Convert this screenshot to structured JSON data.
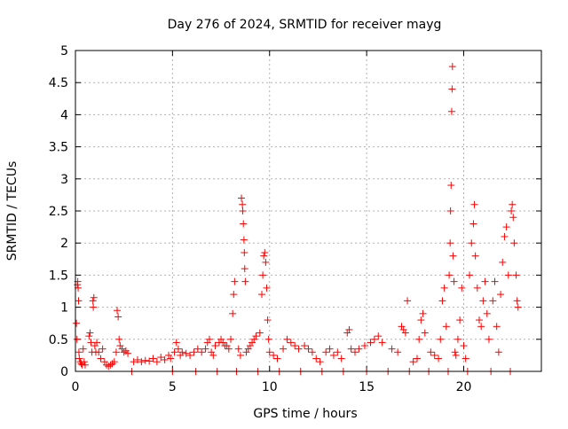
{
  "chart_data": {
    "type": "scatter",
    "title": "Day 276 of 2024, SRMTID for receiver mayg",
    "xlabel": "GPS time / hours",
    "ylabel": "SRMTID / TECUs",
    "xlim": [
      0,
      24
    ],
    "ylim": [
      0,
      5
    ],
    "xticks": [
      0,
      5,
      10,
      15,
      20
    ],
    "xtick_labels": [
      "0",
      "5",
      "10",
      "15",
      "20"
    ],
    "yticks": [
      0,
      0.5,
      1,
      1.5,
      2,
      2.5,
      3,
      3.5,
      4,
      4.5,
      5
    ],
    "ytick_labels": [
      "0",
      "0.5",
      "1",
      "1.5",
      "2",
      "2.5",
      "3",
      "3.5",
      "4",
      "4.5",
      "5"
    ],
    "grid": true,
    "marker": "+",
    "series": [
      {
        "name": "SRMTID",
        "color": "#ff0000",
        "points": [
          [
            0.05,
            0.75
          ],
          [
            0.08,
            0.5
          ],
          [
            0.1,
            1.35
          ],
          [
            0.12,
            1.4
          ],
          [
            0.14,
            1.3
          ],
          [
            0.16,
            1.1
          ],
          [
            0.18,
            0.3
          ],
          [
            0.2,
            0.2
          ],
          [
            0.25,
            0.15
          ],
          [
            0.3,
            0.12
          ],
          [
            0.35,
            0.1
          ],
          [
            0.4,
            0.35
          ],
          [
            0.45,
            0.15
          ],
          [
            0.5,
            0.1
          ],
          [
            0.7,
            0.55
          ],
          [
            0.75,
            0.6
          ],
          [
            0.8,
            0.45
          ],
          [
            0.85,
            0.3
          ],
          [
            0.9,
            1.1
          ],
          [
            0.92,
            1.0
          ],
          [
            0.95,
            1.15
          ],
          [
            1.0,
            0.4
          ],
          [
            1.05,
            0.3
          ],
          [
            1.1,
            0.45
          ],
          [
            1.2,
            0.3
          ],
          [
            1.3,
            0.2
          ],
          [
            1.4,
            0.35
          ],
          [
            1.5,
            0.15
          ],
          [
            1.6,
            0.1
          ],
          [
            1.7,
            0.08
          ],
          [
            1.8,
            0.1
          ],
          [
            1.9,
            0.12
          ],
          [
            2.0,
            0.15
          ],
          [
            2.1,
            0.3
          ],
          [
            2.15,
            0.95
          ],
          [
            2.2,
            0.85
          ],
          [
            2.25,
            0.5
          ],
          [
            2.3,
            0.4
          ],
          [
            2.4,
            0.35
          ],
          [
            2.5,
            0.3
          ],
          [
            2.6,
            0.32
          ],
          [
            2.7,
            0.28
          ],
          [
            2.9,
            0.0
          ],
          [
            3.0,
            0.15
          ],
          [
            3.2,
            0.18
          ],
          [
            3.4,
            0.15
          ],
          [
            3.6,
            0.17
          ],
          [
            3.8,
            0.16
          ],
          [
            4.0,
            0.2
          ],
          [
            4.2,
            0.15
          ],
          [
            4.4,
            0.22
          ],
          [
            4.6,
            0.18
          ],
          [
            4.8,
            0.25
          ],
          [
            4.9,
            0.2
          ],
          [
            5.0,
            0.0
          ],
          [
            5.1,
            0.3
          ],
          [
            5.2,
            0.45
          ],
          [
            5.3,
            0.35
          ],
          [
            5.4,
            0.25
          ],
          [
            5.5,
            0.3
          ],
          [
            5.7,
            0.28
          ],
          [
            5.9,
            0.25
          ],
          [
            6.1,
            0.3
          ],
          [
            6.2,
            0.0
          ],
          [
            6.3,
            0.35
          ],
          [
            6.5,
            0.3
          ],
          [
            6.7,
            0.35
          ],
          [
            6.8,
            0.45
          ],
          [
            6.9,
            0.5
          ],
          [
            7.0,
            0.3
          ],
          [
            7.1,
            0.25
          ],
          [
            7.2,
            0.4
          ],
          [
            7.3,
            0.0
          ],
          [
            7.4,
            0.45
          ],
          [
            7.5,
            0.5
          ],
          [
            7.6,
            0.45
          ],
          [
            7.7,
            0.4
          ],
          [
            7.8,
            0.4
          ],
          [
            7.9,
            0.35
          ],
          [
            8.0,
            0.5
          ],
          [
            8.1,
            0.9
          ],
          [
            8.15,
            1.2
          ],
          [
            8.2,
            1.4
          ],
          [
            8.3,
            0.0
          ],
          [
            8.4,
            0.35
          ],
          [
            8.5,
            0.25
          ],
          [
            8.55,
            2.7
          ],
          [
            8.6,
            2.6
          ],
          [
            8.62,
            2.5
          ],
          [
            8.65,
            2.3
          ],
          [
            8.68,
            2.05
          ],
          [
            8.7,
            1.85
          ],
          [
            8.72,
            1.6
          ],
          [
            8.75,
            1.4
          ],
          [
            8.8,
            0.3
          ],
          [
            8.9,
            0.35
          ],
          [
            9.0,
            0.4
          ],
          [
            9.1,
            0.45
          ],
          [
            9.2,
            0.5
          ],
          [
            9.3,
            0.55
          ],
          [
            9.4,
            0.0
          ],
          [
            9.5,
            0.6
          ],
          [
            9.6,
            1.2
          ],
          [
            9.65,
            1.5
          ],
          [
            9.7,
            1.8
          ],
          [
            9.75,
            1.85
          ],
          [
            9.8,
            1.7
          ],
          [
            9.85,
            1.3
          ],
          [
            9.9,
            0.8
          ],
          [
            9.95,
            0.5
          ],
          [
            10.0,
            0.3
          ],
          [
            10.2,
            0.25
          ],
          [
            10.4,
            0.2
          ],
          [
            10.5,
            0.0
          ],
          [
            10.7,
            0.35
          ],
          [
            10.9,
            0.5
          ],
          [
            11.1,
            0.45
          ],
          [
            11.3,
            0.4
          ],
          [
            11.5,
            0.35
          ],
          [
            11.6,
            0.0
          ],
          [
            11.8,
            0.4
          ],
          [
            12.0,
            0.35
          ],
          [
            12.2,
            0.3
          ],
          [
            12.4,
            0.2
          ],
          [
            12.6,
            0.15
          ],
          [
            12.7,
            0.0
          ],
          [
            12.9,
            0.3
          ],
          [
            13.1,
            0.35
          ],
          [
            13.3,
            0.25
          ],
          [
            13.5,
            0.3
          ],
          [
            13.7,
            0.2
          ],
          [
            13.8,
            0.0
          ],
          [
            14.0,
            0.6
          ],
          [
            14.1,
            0.65
          ],
          [
            14.2,
            0.35
          ],
          [
            14.4,
            0.3
          ],
          [
            14.6,
            0.35
          ],
          [
            14.9,
            0.4
          ],
          [
            15.0,
            0.0
          ],
          [
            15.2,
            0.45
          ],
          [
            15.4,
            0.5
          ],
          [
            15.6,
            0.55
          ],
          [
            15.8,
            0.45
          ],
          [
            16.1,
            0.0
          ],
          [
            16.3,
            0.35
          ],
          [
            16.6,
            0.3
          ],
          [
            16.8,
            0.7
          ],
          [
            16.9,
            0.65
          ],
          [
            17.0,
            0.6
          ],
          [
            17.1,
            1.1
          ],
          [
            17.2,
            0.0
          ],
          [
            17.4,
            0.15
          ],
          [
            17.6,
            0.2
          ],
          [
            17.7,
            0.5
          ],
          [
            17.8,
            0.8
          ],
          [
            17.9,
            0.9
          ],
          [
            18.0,
            0.6
          ],
          [
            18.2,
            0.0
          ],
          [
            18.3,
            0.3
          ],
          [
            18.5,
            0.25
          ],
          [
            18.7,
            0.2
          ],
          [
            18.8,
            0.5
          ],
          [
            18.9,
            1.1
          ],
          [
            19.0,
            1.3
          ],
          [
            19.1,
            0.7
          ],
          [
            19.2,
            0.0
          ],
          [
            19.25,
            1.5
          ],
          [
            19.3,
            2.0
          ],
          [
            19.32,
            2.5
          ],
          [
            19.35,
            2.9
          ],
          [
            19.38,
            4.05
          ],
          [
            19.4,
            4.4
          ],
          [
            19.42,
            4.75
          ],
          [
            19.45,
            1.8
          ],
          [
            19.5,
            1.4
          ],
          [
            19.55,
            0.3
          ],
          [
            19.6,
            0.25
          ],
          [
            19.7,
            0.5
          ],
          [
            19.8,
            0.8
          ],
          [
            19.9,
            1.3
          ],
          [
            20.0,
            0.4
          ],
          [
            20.1,
            0.2
          ],
          [
            20.2,
            0.0
          ],
          [
            20.3,
            1.5
          ],
          [
            20.4,
            2.0
          ],
          [
            20.5,
            2.3
          ],
          [
            20.55,
            2.6
          ],
          [
            20.6,
            1.8
          ],
          [
            20.7,
            1.3
          ],
          [
            20.8,
            0.8
          ],
          [
            20.9,
            0.7
          ],
          [
            21.0,
            1.1
          ],
          [
            21.1,
            1.4
          ],
          [
            21.2,
            0.9
          ],
          [
            21.3,
            0.5
          ],
          [
            21.4,
            0.0
          ],
          [
            21.5,
            1.1
          ],
          [
            21.6,
            1.4
          ],
          [
            21.7,
            0.7
          ],
          [
            21.8,
            0.3
          ],
          [
            21.9,
            1.2
          ],
          [
            22.0,
            1.7
          ],
          [
            22.1,
            2.1
          ],
          [
            22.2,
            2.25
          ],
          [
            22.3,
            1.5
          ],
          [
            22.4,
            0.0
          ],
          [
            22.45,
            2.5
          ],
          [
            22.5,
            2.6
          ],
          [
            22.55,
            2.4
          ],
          [
            22.6,
            2.0
          ],
          [
            22.7,
            1.5
          ],
          [
            22.75,
            1.1
          ],
          [
            22.8,
            1.0
          ]
        ]
      }
    ]
  }
}
